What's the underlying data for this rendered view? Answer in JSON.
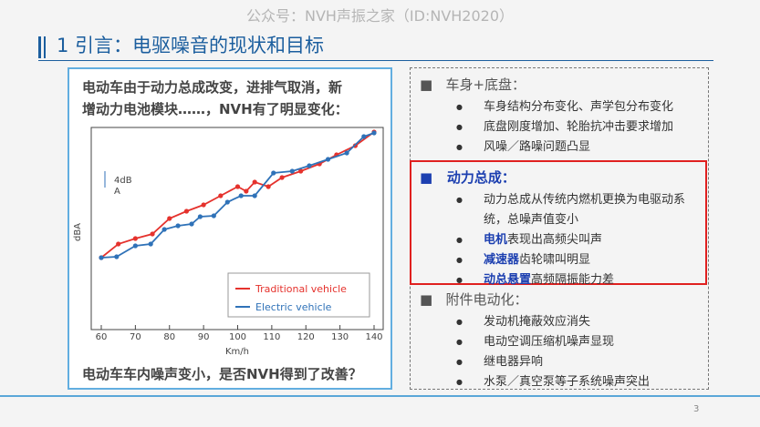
{
  "watermark": "公众号：NVH声振之家（ID:NVH2020）",
  "title": "1 引言：电驱噪音的现状和目标",
  "left_box": {
    "intro": [
      "电动车由于动力总成改变，进排气取消，新",
      "增动力电池模块……，NVH有了明显变化："
    ],
    "conclusion": "电动车车内噪声变小，是否NVH得到了改善？"
  },
  "chart_data": {
    "type": "line",
    "y_label": "dBA",
    "x_label": "Km/h",
    "annotation": [
      "4dB",
      "A"
    ],
    "xlim": [
      60,
      140
    ],
    "xticks": [
      60,
      70,
      80,
      90,
      100,
      110,
      120,
      130,
      140
    ],
    "ylim": [
      0,
      44
    ],
    "series": [
      {
        "name": "Traditional vehicle",
        "color": "#e5322d",
        "x": [
          60,
          65,
          70,
          75,
          80,
          85,
          90,
          95,
          100,
          102.5,
          105,
          109,
          113,
          118.5,
          124,
          129,
          134.5,
          140
        ],
        "values": [
          15.4,
          18.4,
          19.6,
          20.6,
          24,
          25.6,
          27,
          29,
          31,
          30,
          32,
          31,
          33,
          34.4,
          36,
          38,
          40,
          43
        ]
      },
      {
        "name": "Electric vehicle",
        "color": "#2f72b8",
        "x": [
          60,
          64.5,
          70,
          74.5,
          78.5,
          82.5,
          86.5,
          89,
          93,
          97,
          101,
          105,
          110.5,
          116,
          121,
          126.5,
          132,
          137,
          140
        ],
        "values": [
          15.4,
          15.6,
          18,
          18.4,
          21.6,
          22.4,
          22.8,
          24.4,
          24.6,
          27.6,
          29,
          29,
          34,
          34.4,
          35.6,
          37,
          38.4,
          42,
          42.8
        ]
      }
    ]
  },
  "right_box": {
    "sections": [
      {
        "heading": "车身+底盘：",
        "items": [
          {
            "text": "车身结构分布变化、声学包分布变化"
          },
          {
            "text": "底盘刚度增加、轮胎抗冲击要求增加"
          },
          {
            "text": "风噪／路噪问题凸显"
          }
        ]
      },
      {
        "heading": "动力总成：",
        "items": [
          {
            "text": "动力总成从传统内燃机更换为电驱动系统，总噪声值变小"
          },
          {
            "key": "电机",
            "text": "表现出高频尖叫声"
          },
          {
            "key": "减速器",
            "text": "齿轮啸叫明显"
          },
          {
            "key": "动总悬置",
            "text": "高频隔振能力差"
          }
        ]
      },
      {
        "heading": "附件电动化：",
        "items": [
          {
            "text": "发动机掩蔽效应消失"
          },
          {
            "text": "电动空调压缩机噪声显现"
          },
          {
            "text": "继电器异响"
          },
          {
            "text": "水泵／真空泵等子系统噪声突出"
          }
        ]
      }
    ]
  },
  "page_number": "3"
}
